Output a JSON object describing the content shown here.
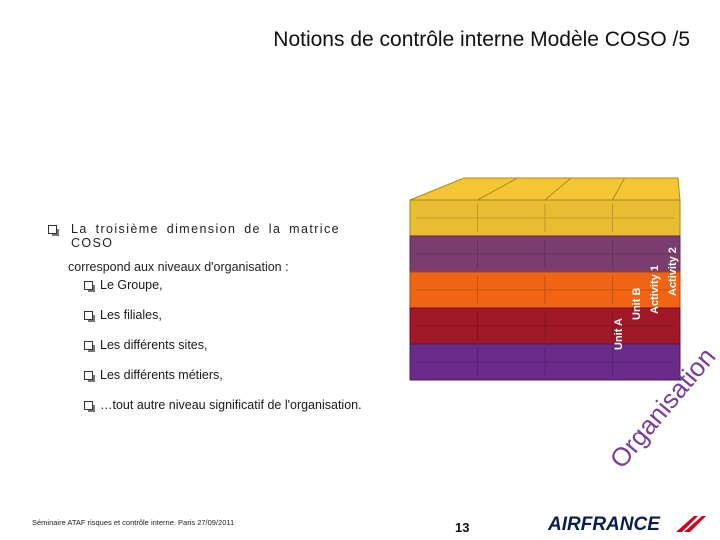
{
  "title": "Notions de contrôle interne Modèle COSO /5",
  "intro": {
    "line1": "La troisième dimension de la matrice COSO",
    "line2": "correspond aux niveaux d'organisation :"
  },
  "levels": [
    "Le Groupe,",
    "Les filiales,",
    "Les différents sites,",
    "Les différents métiers,",
    "…tout autre niveau significatif de l'organisation."
  ],
  "cube": {
    "layer_colors": [
      "#e8bd32",
      "#7a3d6e",
      "#f06414",
      "#a01828",
      "#6a2a8a"
    ],
    "side_labels": [
      "Unit A",
      "Unit B",
      "Activity 1",
      "Activity 2"
    ],
    "axis_label": "Organisation"
  },
  "footer": {
    "left": "Séminaire ATAF risques et contrôle interne. Paris 27/09/2011",
    "page": "13",
    "logo": "AIRFRANCE"
  }
}
